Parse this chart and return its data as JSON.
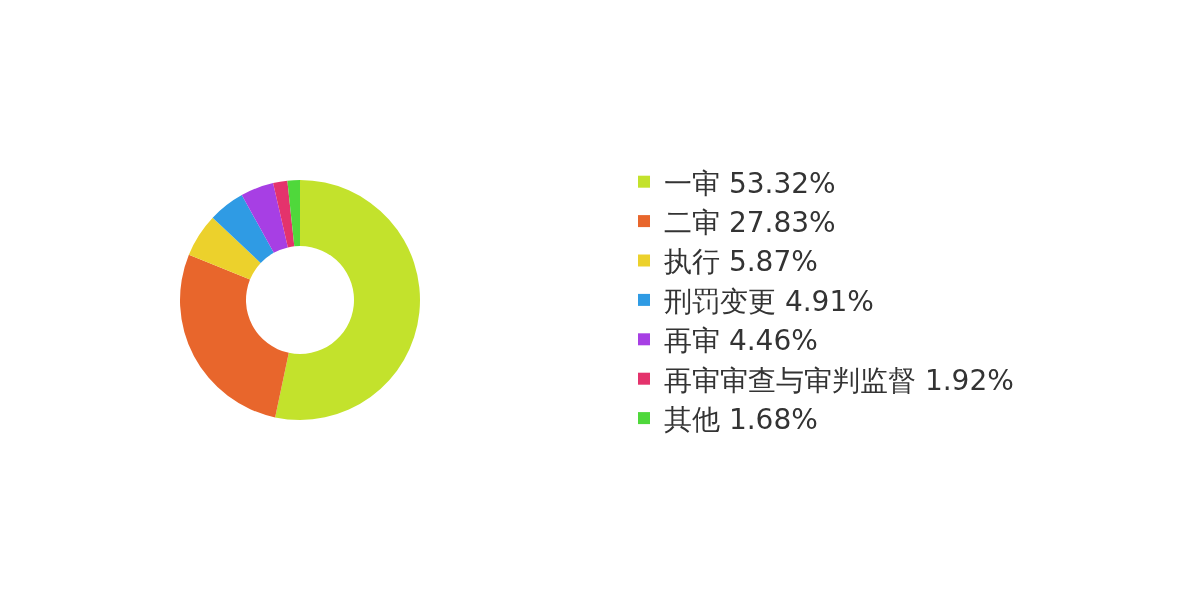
{
  "chart_data": {
    "type": "donut",
    "categories": [
      "一审",
      "二审",
      "执行",
      "刑罚变更",
      "再审",
      "再审审查与审判监督",
      "其他"
    ],
    "values": [
      53.32,
      27.83,
      5.87,
      4.91,
      4.46,
      1.92,
      1.68
    ],
    "value_labels": [
      "53.32%",
      "27.83%",
      "5.87%",
      "4.91%",
      "4.46%",
      "1.92%",
      "1.68%"
    ],
    "colors": [
      "#c3e22c",
      "#e8662c",
      "#ecd12c",
      "#2f9be4",
      "#a73fe4",
      "#e4336c",
      "#4fd83b"
    ],
    "legend": "right"
  }
}
